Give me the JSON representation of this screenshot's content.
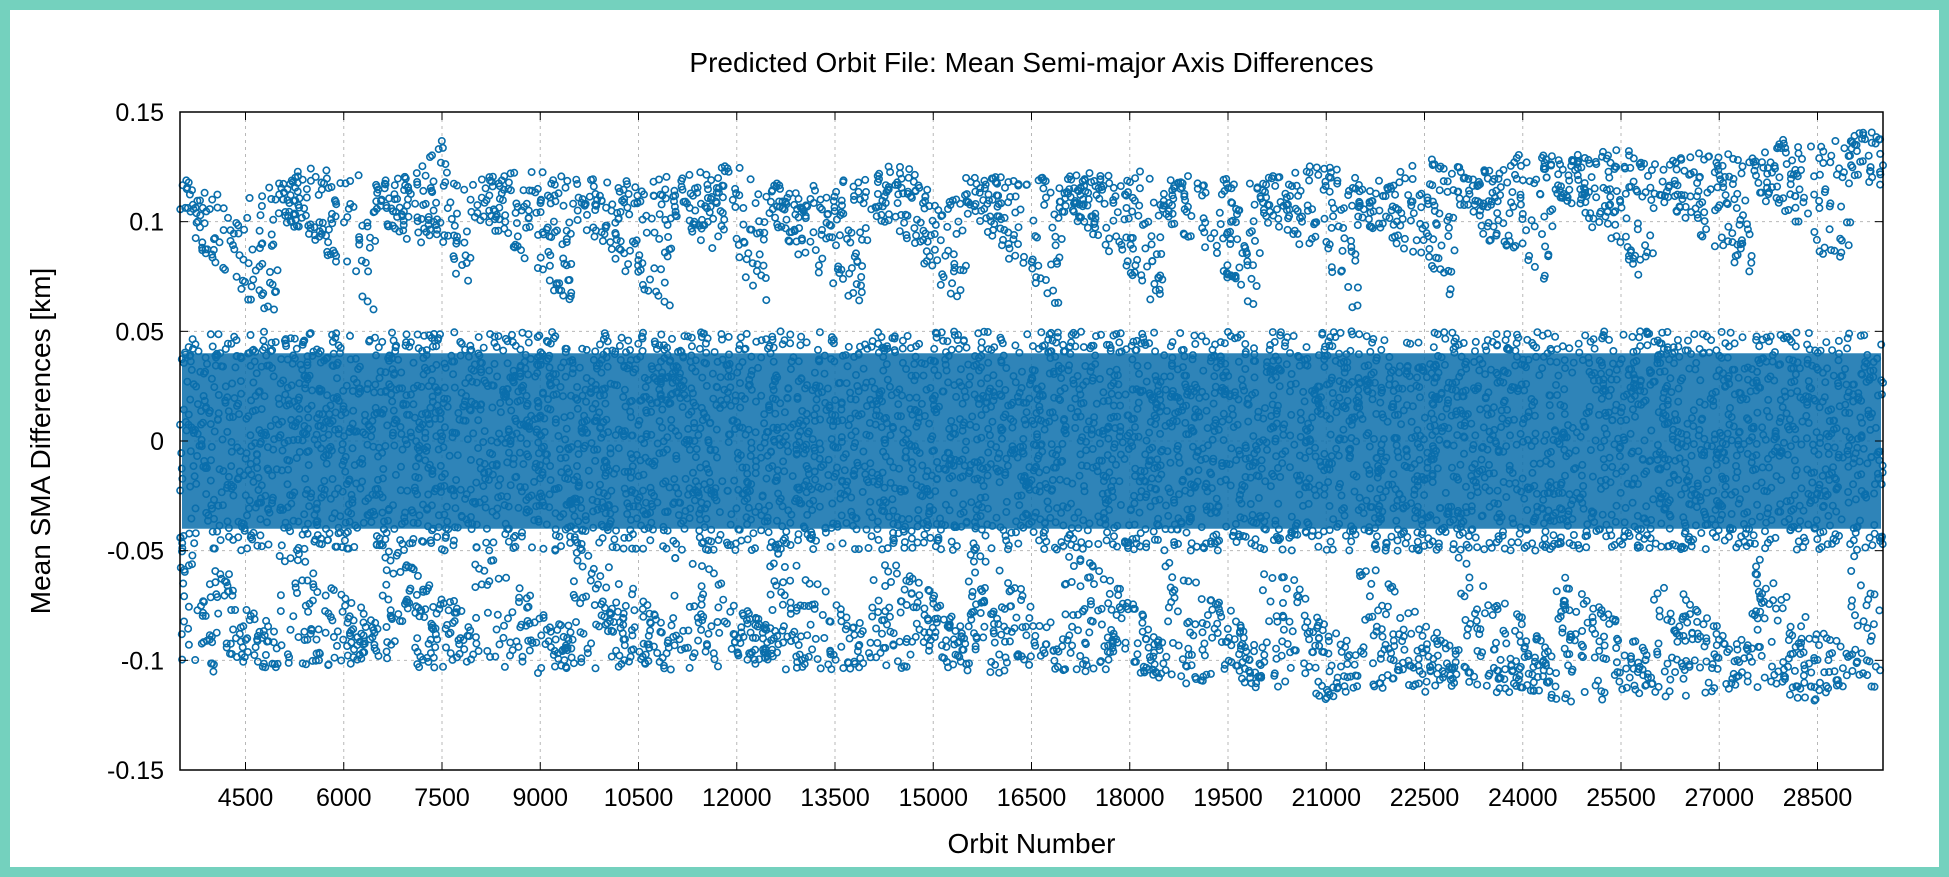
{
  "chart_data": {
    "type": "scatter",
    "title": "Predicted Orbit File: Mean Semi-major Axis Differences",
    "xlabel": "Orbit Number",
    "ylabel": "Mean SMA Differences [km]",
    "xlim": [
      3500,
      29500
    ],
    "ylim": [
      -0.15,
      0.15
    ],
    "xticks": [
      4500,
      6000,
      7500,
      9000,
      10500,
      12000,
      13500,
      15000,
      16500,
      18000,
      19500,
      21000,
      22500,
      24000,
      25500,
      27000,
      28500
    ],
    "yticks": [
      0.15,
      0.1,
      0.05,
      0,
      -0.05,
      -0.1,
      -0.15
    ],
    "grid": true,
    "marker": "open-circle",
    "series": [
      {
        "color": "#0a6eab",
        "envelope": {
          "x": [
            3500,
            4000,
            4300,
            4500,
            5000,
            5500,
            6000,
            6500,
            7000,
            7500,
            7700,
            8000,
            8500,
            9000,
            9500,
            10000,
            10500,
            11000,
            11500,
            12000,
            12500,
            12700,
            13000,
            13500,
            14000,
            14500,
            15000,
            15500,
            16000,
            16500,
            17000,
            17500,
            18000,
            18500,
            19000,
            19500,
            20000,
            20500,
            21000,
            21500,
            22000,
            22500,
            23000,
            23500,
            24000,
            24500,
            25000,
            25500,
            26000,
            26500,
            27000,
            27500,
            28000,
            28500,
            29000,
            29500
          ],
          "upper": [
            0.121,
            0.112,
            0.118,
            0.11,
            0.12,
            0.125,
            0.124,
            0.118,
            0.121,
            0.137,
            0.118,
            0.12,
            0.122,
            0.125,
            0.12,
            0.121,
            0.118,
            0.122,
            0.123,
            0.127,
            0.12,
            0.118,
            0.115,
            0.119,
            0.122,
            0.128,
            0.119,
            0.12,
            0.121,
            0.12,
            0.122,
            0.124,
            0.125,
            0.12,
            0.123,
            0.121,
            0.119,
            0.124,
            0.128,
            0.119,
            0.124,
            0.13,
            0.125,
            0.124,
            0.132,
            0.13,
            0.132,
            0.134,
            0.128,
            0.132,
            0.134,
            0.13,
            0.138,
            0.134,
            0.14,
            0.147
          ],
          "lower": [
            -0.103,
            -0.107,
            -0.098,
            -0.106,
            -0.104,
            -0.103,
            -0.102,
            -0.1,
            -0.103,
            -0.105,
            -0.099,
            -0.103,
            -0.104,
            -0.107,
            -0.103,
            -0.104,
            -0.102,
            -0.105,
            -0.103,
            -0.104,
            -0.101,
            -0.106,
            -0.107,
            -0.105,
            -0.104,
            -0.106,
            -0.102,
            -0.105,
            -0.106,
            -0.104,
            -0.105,
            -0.106,
            -0.104,
            -0.11,
            -0.111,
            -0.106,
            -0.115,
            -0.11,
            -0.118,
            -0.112,
            -0.113,
            -0.115,
            -0.112,
            -0.117,
            -0.113,
            -0.118,
            -0.121,
            -0.114,
            -0.117,
            -0.118,
            -0.116,
            -0.112,
            -0.118,
            -0.119,
            -0.112,
            -0.115
          ],
          "dense_core": 0.05
        }
      }
    ]
  }
}
